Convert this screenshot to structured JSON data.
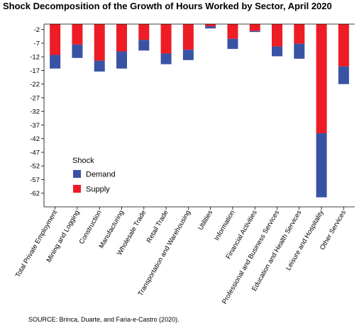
{
  "chart_data": {
    "type": "bar",
    "stacked": true,
    "title": "Shock Decomposition of the Growth of Hours Worked by Sector, April 2020",
    "xlabel": "",
    "ylabel": "",
    "ylim": [
      -67,
      0
    ],
    "yticks": [
      -2,
      -7,
      -12,
      -17,
      -22,
      -27,
      -32,
      -37,
      -42,
      -47,
      -52,
      -57,
      -62
    ],
    "categories": [
      "Total Private Employment",
      "Mining and Logging",
      "Construction",
      "Manufacturing",
      "Wholesale Trade",
      "Retail Trade",
      "Transportation and Warehousing",
      "Utilities",
      "Information",
      "Financial Activities",
      "Professional and Business Services",
      "Education and Health Services",
      "Leisure and Hospitality",
      "Other Services"
    ],
    "series": [
      {
        "name": "Supply",
        "color": "#ee1c24",
        "values": [
          -11.3,
          -7.5,
          -13.4,
          -10.0,
          -5.8,
          -10.8,
          -9.4,
          -0.8,
          -5.4,
          -2.5,
          -8.2,
          -7.2,
          -40.0,
          -15.5
        ]
      },
      {
        "name": "Demand",
        "color": "#3953a4",
        "values": [
          -5.0,
          -4.9,
          -4.0,
          -6.3,
          -3.9,
          -3.9,
          -3.8,
          -0.8,
          -3.7,
          -0.4,
          -3.6,
          -5.5,
          -23.5,
          -6.5
        ]
      }
    ],
    "legend": {
      "title": "Shock",
      "position": "lower-left",
      "order": [
        "Demand",
        "Supply"
      ]
    },
    "grid": false
  },
  "source": "SOURCE: Brinca, Duarte, and Faria-e-Castro (2020)."
}
